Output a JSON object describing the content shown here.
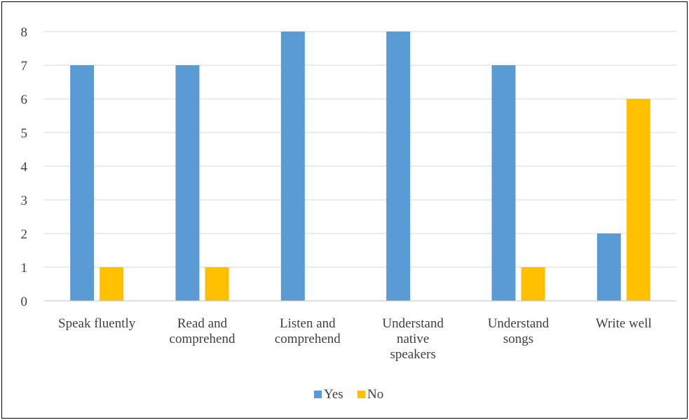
{
  "chart_data": {
    "type": "bar",
    "title": "",
    "xlabel": "",
    "ylabel": "",
    "categories": [
      [
        "Speak fluently"
      ],
      [
        "Read and",
        "comprehend"
      ],
      [
        "Listen and",
        "comprehend"
      ],
      [
        "Understand",
        "native",
        "speakers"
      ],
      [
        "Understand",
        "songs"
      ],
      [
        "Write well"
      ]
    ],
    "series": [
      {
        "name": "Yes",
        "color": "#5b9bd5",
        "values": [
          7,
          7,
          8,
          8,
          7,
          2
        ]
      },
      {
        "name": "No",
        "color": "#ffc000",
        "values": [
          1,
          1,
          0,
          0,
          1,
          6
        ]
      }
    ],
    "ylim": [
      0,
      8
    ],
    "yticks": [
      "0",
      "1",
      "2",
      "3",
      "4",
      "5",
      "6",
      "7",
      "8"
    ],
    "grid": true,
    "legend_position": "bottom"
  }
}
